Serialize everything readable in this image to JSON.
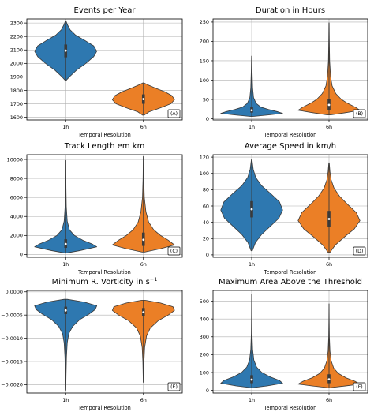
{
  "chart_data": [
    {
      "type": "violin",
      "title": "Events per Year",
      "xlabel": "Temporal Resolution",
      "ylabel": "",
      "panel_label": "(A)",
      "categories": [
        "1h",
        "6h"
      ],
      "colors": [
        "#2e78b0",
        "#eb7f26"
      ],
      "ylim": [
        1580,
        2330
      ],
      "yticks": [
        1600,
        1700,
        1800,
        1900,
        2000,
        2100,
        2200,
        2300
      ],
      "yticklabels": [
        "1600",
        "1700",
        "1800",
        "1900",
        "2000",
        "2100",
        "2200",
        "2300"
      ],
      "grid": true,
      "violins": [
        {
          "category": "1h",
          "min": 1875,
          "max": 2315,
          "q1": 2045,
          "median": 2095,
          "q3": 2140,
          "profile": [
            [
              1875,
              0.02
            ],
            [
              1900,
              0.12
            ],
            [
              1950,
              0.35
            ],
            [
              2000,
              0.65
            ],
            [
              2050,
              0.9
            ],
            [
              2090,
              1.0
            ],
            [
              2130,
              0.9
            ],
            [
              2170,
              0.62
            ],
            [
              2210,
              0.32
            ],
            [
              2250,
              0.14
            ],
            [
              2290,
              0.05
            ],
            [
              2315,
              0.01
            ]
          ]
        },
        {
          "category": "6h",
          "min": 1615,
          "max": 1855,
          "q1": 1700,
          "median": 1735,
          "q3": 1770,
          "profile": [
            [
              1615,
              0.02
            ],
            [
              1640,
              0.18
            ],
            [
              1670,
              0.55
            ],
            [
              1700,
              0.88
            ],
            [
              1730,
              1.0
            ],
            [
              1760,
              0.92
            ],
            [
              1790,
              0.68
            ],
            [
              1815,
              0.4
            ],
            [
              1840,
              0.15
            ],
            [
              1855,
              0.02
            ]
          ]
        }
      ]
    },
    {
      "type": "violin",
      "title": "Duration in Hours",
      "xlabel": "Temporal Resolution",
      "ylabel": "",
      "panel_label": "(B)",
      "categories": [
        "1h",
        "6h"
      ],
      "colors": [
        "#2e78b0",
        "#eb7f26"
      ],
      "ylim": [
        -3,
        258
      ],
      "yticks": [
        0,
        50,
        100,
        150,
        200,
        250
      ],
      "yticklabels": [
        "0",
        "50",
        "100",
        "150",
        "200",
        "250"
      ],
      "grid": true,
      "violins": [
        {
          "category": "1h",
          "min": 6,
          "max": 162,
          "q1": 16,
          "median": 22,
          "q3": 30,
          "profile": [
            [
              6,
              0.02
            ],
            [
              10,
              0.55
            ],
            [
              14,
              1.0
            ],
            [
              18,
              0.85
            ],
            [
              24,
              0.55
            ],
            [
              30,
              0.3
            ],
            [
              40,
              0.14
            ],
            [
              55,
              0.06
            ],
            [
              80,
              0.03
            ],
            [
              120,
              0.015
            ],
            [
              162,
              0.005
            ]
          ]
        },
        {
          "category": "6h",
          "min": 10,
          "max": 248,
          "q1": 22,
          "median": 36,
          "q3": 50,
          "profile": [
            [
              10,
              0.05
            ],
            [
              16,
              0.55
            ],
            [
              22,
              1.0
            ],
            [
              30,
              0.85
            ],
            [
              40,
              0.6
            ],
            [
              50,
              0.4
            ],
            [
              65,
              0.22
            ],
            [
              85,
              0.1
            ],
            [
              110,
              0.05
            ],
            [
              150,
              0.02
            ],
            [
              200,
              0.01
            ],
            [
              248,
              0.004
            ]
          ]
        }
      ]
    },
    {
      "type": "violin",
      "title": "Track Length em km",
      "xlabel": "Temporal Resolution",
      "ylabel": "",
      "panel_label": "(C)",
      "categories": [
        "1h",
        "6h"
      ],
      "colors": [
        "#2e78b0",
        "#eb7f26"
      ],
      "ylim": [
        -300,
        10500
      ],
      "yticks": [
        0,
        2000,
        4000,
        6000,
        8000,
        10000
      ],
      "yticklabels": [
        "0",
        "2000",
        "4000",
        "6000",
        "8000",
        "10000"
      ],
      "grid": true,
      "violins": [
        {
          "category": "1h",
          "min": 150,
          "max": 9900,
          "q1": 700,
          "median": 1100,
          "q3": 1600,
          "profile": [
            [
              150,
              0.02
            ],
            [
              400,
              0.45
            ],
            [
              800,
              1.0
            ],
            [
              1100,
              0.85
            ],
            [
              1500,
              0.55
            ],
            [
              2000,
              0.28
            ],
            [
              2600,
              0.12
            ],
            [
              3500,
              0.05
            ],
            [
              5000,
              0.02
            ],
            [
              7000,
              0.01
            ],
            [
              9900,
              0.004
            ]
          ]
        },
        {
          "category": "6h",
          "min": 250,
          "max": 10300,
          "q1": 900,
          "median": 1550,
          "q3": 2300,
          "profile": [
            [
              250,
              0.04
            ],
            [
              600,
              0.55
            ],
            [
              1000,
              1.0
            ],
            [
              1500,
              0.8
            ],
            [
              2000,
              0.55
            ],
            [
              2600,
              0.33
            ],
            [
              3400,
              0.17
            ],
            [
              4500,
              0.08
            ],
            [
              6000,
              0.03
            ],
            [
              8000,
              0.012
            ],
            [
              10300,
              0.004
            ]
          ]
        }
      ]
    },
    {
      "type": "violin",
      "title": "Average Speed in km/h",
      "xlabel": "Temporal Resolution",
      "ylabel": "",
      "panel_label": "(D)",
      "categories": [
        "1h",
        "6h"
      ],
      "colors": [
        "#2e78b0",
        "#eb7f26"
      ],
      "ylim": [
        -3,
        123
      ],
      "yticks": [
        0,
        20,
        40,
        60,
        80,
        100,
        120
      ],
      "yticklabels": [
        "0",
        "20",
        "40",
        "60",
        "80",
        "100",
        "120"
      ],
      "grid": true,
      "violins": [
        {
          "category": "1h",
          "min": 5,
          "max": 117,
          "q1": 46,
          "median": 56,
          "q3": 66,
          "profile": [
            [
              5,
              0.02
            ],
            [
              15,
              0.12
            ],
            [
              25,
              0.32
            ],
            [
              35,
              0.6
            ],
            [
              45,
              0.88
            ],
            [
              55,
              1.0
            ],
            [
              65,
              0.9
            ],
            [
              75,
              0.62
            ],
            [
              85,
              0.32
            ],
            [
              95,
              0.13
            ],
            [
              105,
              0.05
            ],
            [
              117,
              0.01
            ]
          ]
        },
        {
          "category": "6h",
          "min": 3,
          "max": 113,
          "q1": 34,
          "median": 44,
          "q3": 54,
          "profile": [
            [
              3,
              0.03
            ],
            [
              12,
              0.2
            ],
            [
              22,
              0.5
            ],
            [
              32,
              0.82
            ],
            [
              42,
              1.0
            ],
            [
              52,
              0.88
            ],
            [
              62,
              0.6
            ],
            [
              72,
              0.34
            ],
            [
              82,
              0.16
            ],
            [
              92,
              0.07
            ],
            [
              102,
              0.03
            ],
            [
              113,
              0.008
            ]
          ]
        }
      ]
    },
    {
      "type": "violin",
      "title": "Minimum R. Vorticity in s",
      "title_superscript": "−1",
      "xlabel": "Temporal Resolution",
      "ylabel": "",
      "panel_label": "(E)",
      "categories": [
        "1h",
        "6h"
      ],
      "colors": [
        "#2e78b0",
        "#eb7f26"
      ],
      "ylim": [
        -0.00218,
        3e-05
      ],
      "yticks": [
        0.0,
        -0.0005,
        -0.001,
        -0.0015,
        -0.002
      ],
      "yticklabels": [
        "0.0000",
        "−0.0005",
        "−0.0010",
        "−0.0015",
        "−0.0020"
      ],
      "grid": true,
      "violins": [
        {
          "category": "1h",
          "min": -0.00212,
          "max": -0.00016,
          "q1": -0.00048,
          "median": -0.0004,
          "q3": -0.00032,
          "profile": [
            [
              -0.00016,
              0.05
            ],
            [
              -0.00022,
              0.6
            ],
            [
              -0.0003,
              1.0
            ],
            [
              -0.00038,
              0.95
            ],
            [
              -0.00048,
              0.75
            ],
            [
              -0.0006,
              0.45
            ],
            [
              -0.00075,
              0.22
            ],
            [
              -0.0009,
              0.1
            ],
            [
              -0.0011,
              0.05
            ],
            [
              -0.0014,
              0.025
            ],
            [
              -0.0018,
              0.012
            ],
            [
              -0.00212,
              0.004
            ]
          ]
        },
        {
          "category": "6h",
          "min": -0.00195,
          "max": -0.00018,
          "q1": -0.00052,
          "median": -0.00044,
          "q3": -0.00035,
          "profile": [
            [
              -0.00018,
              0.05
            ],
            [
              -0.00024,
              0.55
            ],
            [
              -0.00032,
              0.95
            ],
            [
              -0.0004,
              1.0
            ],
            [
              -0.0005,
              0.8
            ],
            [
              -0.00062,
              0.48
            ],
            [
              -0.00078,
              0.22
            ],
            [
              -0.00095,
              0.1
            ],
            [
              -0.0012,
              0.04
            ],
            [
              -0.0015,
              0.018
            ],
            [
              -0.00195,
              0.005
            ]
          ]
        }
      ]
    },
    {
      "type": "violin",
      "title": "Maximum Area Above the Threshold",
      "xlabel": "Temporal Resolution",
      "ylabel": "",
      "panel_label": "(F)",
      "categories": [
        "1h",
        "6h"
      ],
      "colors": [
        "#2e78b0",
        "#eb7f26"
      ],
      "ylim": [
        -15,
        560
      ],
      "yticks": [
        0,
        100,
        200,
        300,
        400,
        500
      ],
      "yticklabels": [
        "0",
        "100",
        "200",
        "300",
        "400",
        "500"
      ],
      "grid": true,
      "violins": [
        {
          "category": "1h",
          "min": 15,
          "max": 540,
          "q1": 40,
          "median": 60,
          "q3": 85,
          "profile": [
            [
              15,
              0.03
            ],
            [
              25,
              0.5
            ],
            [
              40,
              1.0
            ],
            [
              55,
              0.9
            ],
            [
              75,
              0.6
            ],
            [
              100,
              0.33
            ],
            [
              130,
              0.16
            ],
            [
              170,
              0.07
            ],
            [
              230,
              0.03
            ],
            [
              320,
              0.012
            ],
            [
              420,
              0.006
            ],
            [
              540,
              0.003
            ]
          ]
        },
        {
          "category": "6h",
          "min": 15,
          "max": 485,
          "q1": 40,
          "median": 62,
          "q3": 90,
          "profile": [
            [
              15,
              0.03
            ],
            [
              25,
              0.55
            ],
            [
              35,
              1.0
            ],
            [
              50,
              0.85
            ],
            [
              70,
              0.55
            ],
            [
              95,
              0.3
            ],
            [
              125,
              0.15
            ],
            [
              165,
              0.07
            ],
            [
              220,
              0.03
            ],
            [
              300,
              0.012
            ],
            [
              400,
              0.005
            ],
            [
              485,
              0.002
            ]
          ]
        }
      ]
    }
  ]
}
